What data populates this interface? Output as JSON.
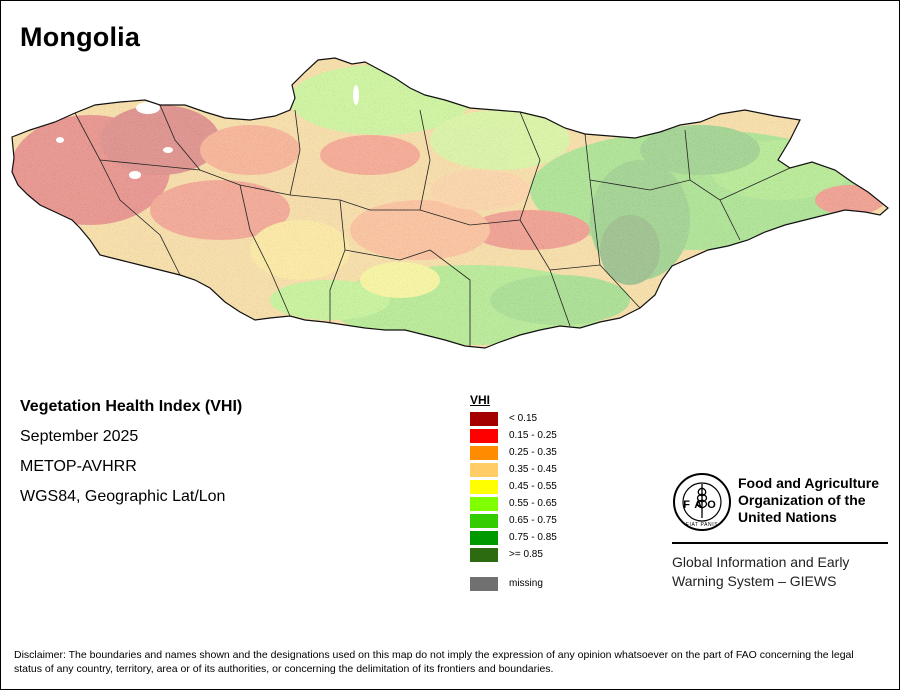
{
  "map": {
    "title": "Mongolia",
    "product": "Vegetation Health Index (VHI)",
    "date": "September 2025",
    "sensor": "METOP-AVHRR",
    "projection": "WGS84, Geographic Lat/Lon"
  },
  "legend": {
    "title": "VHI",
    "items": [
      {
        "label": "< 0.15",
        "color": "#a50000"
      },
      {
        "label": "0.15 - 0.25",
        "color": "#ff0000"
      },
      {
        "label": "0.25 - 0.35",
        "color": "#ff8c00"
      },
      {
        "label": "0.35 - 0.45",
        "color": "#ffcc66"
      },
      {
        "label": "0.45 - 0.55",
        "color": "#ffff00"
      },
      {
        "label": "0.55 - 0.65",
        "color": "#80ff00"
      },
      {
        "label": "0.65 - 0.75",
        "color": "#33cc00"
      },
      {
        "label": "0.75 - 0.85",
        "color": "#009900"
      },
      {
        "label": ">= 0.85",
        "color": "#2d6b10"
      }
    ],
    "missing": {
      "label": "missing",
      "color": "#707070"
    }
  },
  "organization": {
    "logo_text": "FAO",
    "logo_motto": "FIAT PANIS",
    "name_line1": "Food and Agriculture",
    "name_line2": "Organization of the",
    "name_line3": "United Nations",
    "program_line1": "Global Information and Early",
    "program_line2": "Warning System – GIEWS"
  },
  "disclaimer": "Disclaimer: The boundaries and names shown and the designations used on this map do not imply the expression of any opinion whatsoever on the part of FAO concerning the legal status of any country, territory, area or of its authorities, or concerning the delimitation of its frontiers and boundaries."
}
